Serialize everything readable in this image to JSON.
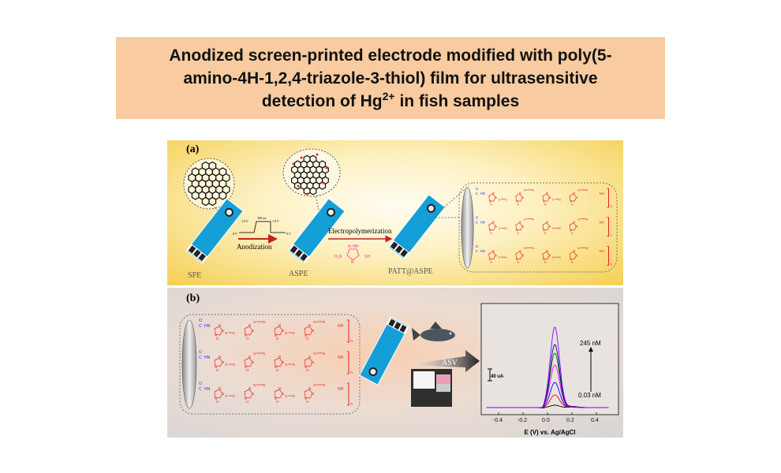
{
  "title": {
    "line1": "Anodized screen-printed electrode modified with poly(5-",
    "line2": "amino-4H-1,2,4-triazole-3-thiol) film for ultrasensitive",
    "line3_pre": "detection of Hg",
    "line3_sup": "2+",
    "line3_post": " in fish samples"
  },
  "panel_a": {
    "label": "(a)",
    "electrodes": [
      "SPE",
      "ASPE",
      "PATT@ASPE"
    ],
    "anodization": {
      "label": "Anodization",
      "waveform_labels": [
        "0 V",
        "1.8 V",
        "300 sec",
        "1.8 V",
        "0 V"
      ]
    },
    "electropolymerization": {
      "label": "Electropolymerization",
      "monomer_labels": {
        "ring_top": "N–NH",
        "amine": "H₂N",
        "ring_n": "N",
        "thiol": "SH"
      }
    }
  },
  "panel_b": {
    "label": "(b)",
    "asv_label": "ASV"
  },
  "polymer_labels": {
    "carbonyl_o": "O",
    "carbonyl_c": "C",
    "amide": "HN",
    "ring_n": "N",
    "ring_nh": "H",
    "sulfur": "S",
    "azo": "N",
    "end_nh": "NH",
    "repeat": "n"
  },
  "colors": {
    "electrode": "#159fd8",
    "polymer": "#e8231f",
    "linker": "#2a2aff",
    "title_bg": "#f8cba0",
    "monomer": "#ff2d9c"
  },
  "chart_data": {
    "type": "line",
    "xlabel": "E  (V) vs. Ag/AgCl",
    "xlim": [
      -0.5,
      0.5
    ],
    "xticks": [
      "-0.4",
      "-0.2",
      "0.0",
      "0.2",
      "0.4"
    ],
    "scale_bar": "40 uA",
    "annotation_high": "245 nM",
    "annotation_low": "0.03 nM",
    "peak_potential": 0.06,
    "series": [
      {
        "color": "#000000",
        "peak_uA": 8
      },
      {
        "color": "#ff0000",
        "peak_uA": 43
      },
      {
        "color": "#0000ff",
        "peak_uA": 85
      },
      {
        "color": "#ff00ff",
        "peak_uA": 144
      },
      {
        "color": "#008000",
        "peak_uA": 184
      },
      {
        "color": "#000080",
        "peak_uA": 213
      },
      {
        "color": "#8000ff",
        "peak_uA": 272
      }
    ]
  }
}
